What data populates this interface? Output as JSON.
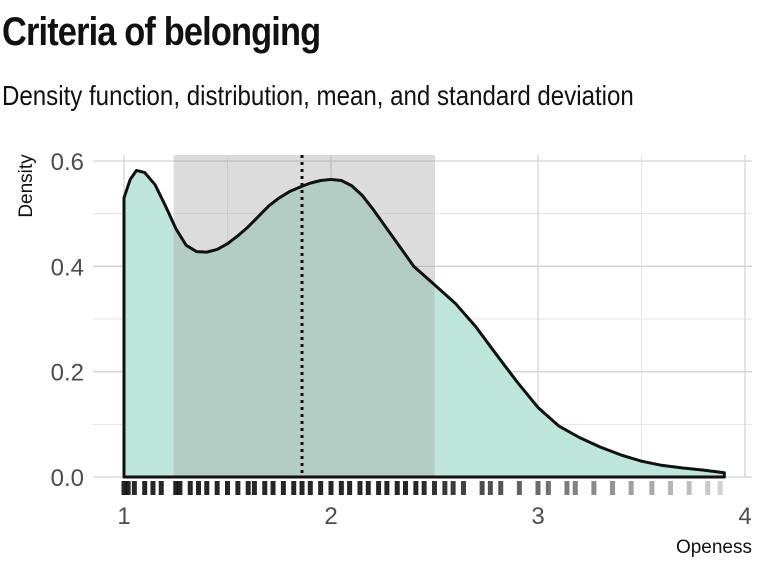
{
  "title": "Criteria of belonging",
  "subtitle": "Density function, distribution, mean, and standard deviation",
  "chart_data": {
    "type": "area",
    "xlabel": "Openess",
    "ylabel": "Density",
    "xlim": [
      0.95,
      4.05
    ],
    "ylim": [
      0,
      0.6
    ],
    "x_ticks": [
      1,
      2,
      3,
      4
    ],
    "y_ticks": [
      0.0,
      0.2,
      0.4,
      0.6
    ],
    "x_tick_labels": [
      "1",
      "2",
      "3",
      "4"
    ],
    "y_tick_labels": [
      "0.0",
      "0.2",
      "0.4",
      "0.6"
    ],
    "grid": true,
    "fill_color": "#bfe6da",
    "sd_band_color": "#9e9e9e",
    "mean": 1.86,
    "sd_band": [
      1.24,
      2.5
    ],
    "density": {
      "x": [
        1.0,
        1.03,
        1.06,
        1.1,
        1.15,
        1.2,
        1.25,
        1.3,
        1.35,
        1.4,
        1.45,
        1.5,
        1.55,
        1.6,
        1.65,
        1.7,
        1.75,
        1.8,
        1.86,
        1.9,
        1.95,
        2.0,
        2.05,
        2.1,
        2.15,
        2.2,
        2.3,
        2.4,
        2.5,
        2.6,
        2.7,
        2.8,
        2.9,
        3.0,
        3.1,
        3.2,
        3.3,
        3.4,
        3.5,
        3.6,
        3.7,
        3.8,
        3.9
      ],
      "y": [
        0.53,
        0.565,
        0.582,
        0.578,
        0.555,
        0.515,
        0.472,
        0.44,
        0.428,
        0.427,
        0.432,
        0.443,
        0.458,
        0.475,
        0.495,
        0.515,
        0.53,
        0.542,
        0.552,
        0.558,
        0.563,
        0.565,
        0.563,
        0.553,
        0.535,
        0.51,
        0.455,
        0.4,
        0.365,
        0.33,
        0.285,
        0.232,
        0.18,
        0.132,
        0.097,
        0.075,
        0.057,
        0.042,
        0.03,
        0.022,
        0.017,
        0.013,
        0.008
      ]
    },
    "rug_x": [
      1.0,
      1.02,
      1.05,
      1.1,
      1.14,
      1.18,
      1.25,
      1.27,
      1.32,
      1.36,
      1.4,
      1.45,
      1.5,
      1.55,
      1.6,
      1.63,
      1.68,
      1.72,
      1.77,
      1.82,
      1.86,
      1.9,
      1.95,
      2.0,
      2.05,
      2.09,
      2.14,
      2.18,
      2.23,
      2.27,
      2.32,
      2.36,
      2.41,
      2.45,
      2.5,
      2.55,
      2.59,
      2.64,
      2.73,
      2.77,
      2.82,
      2.91,
      3.0,
      3.05,
      3.14,
      3.18,
      3.27,
      3.36,
      3.45,
      3.55,
      3.64,
      3.73,
      3.82,
      3.88
    ]
  }
}
